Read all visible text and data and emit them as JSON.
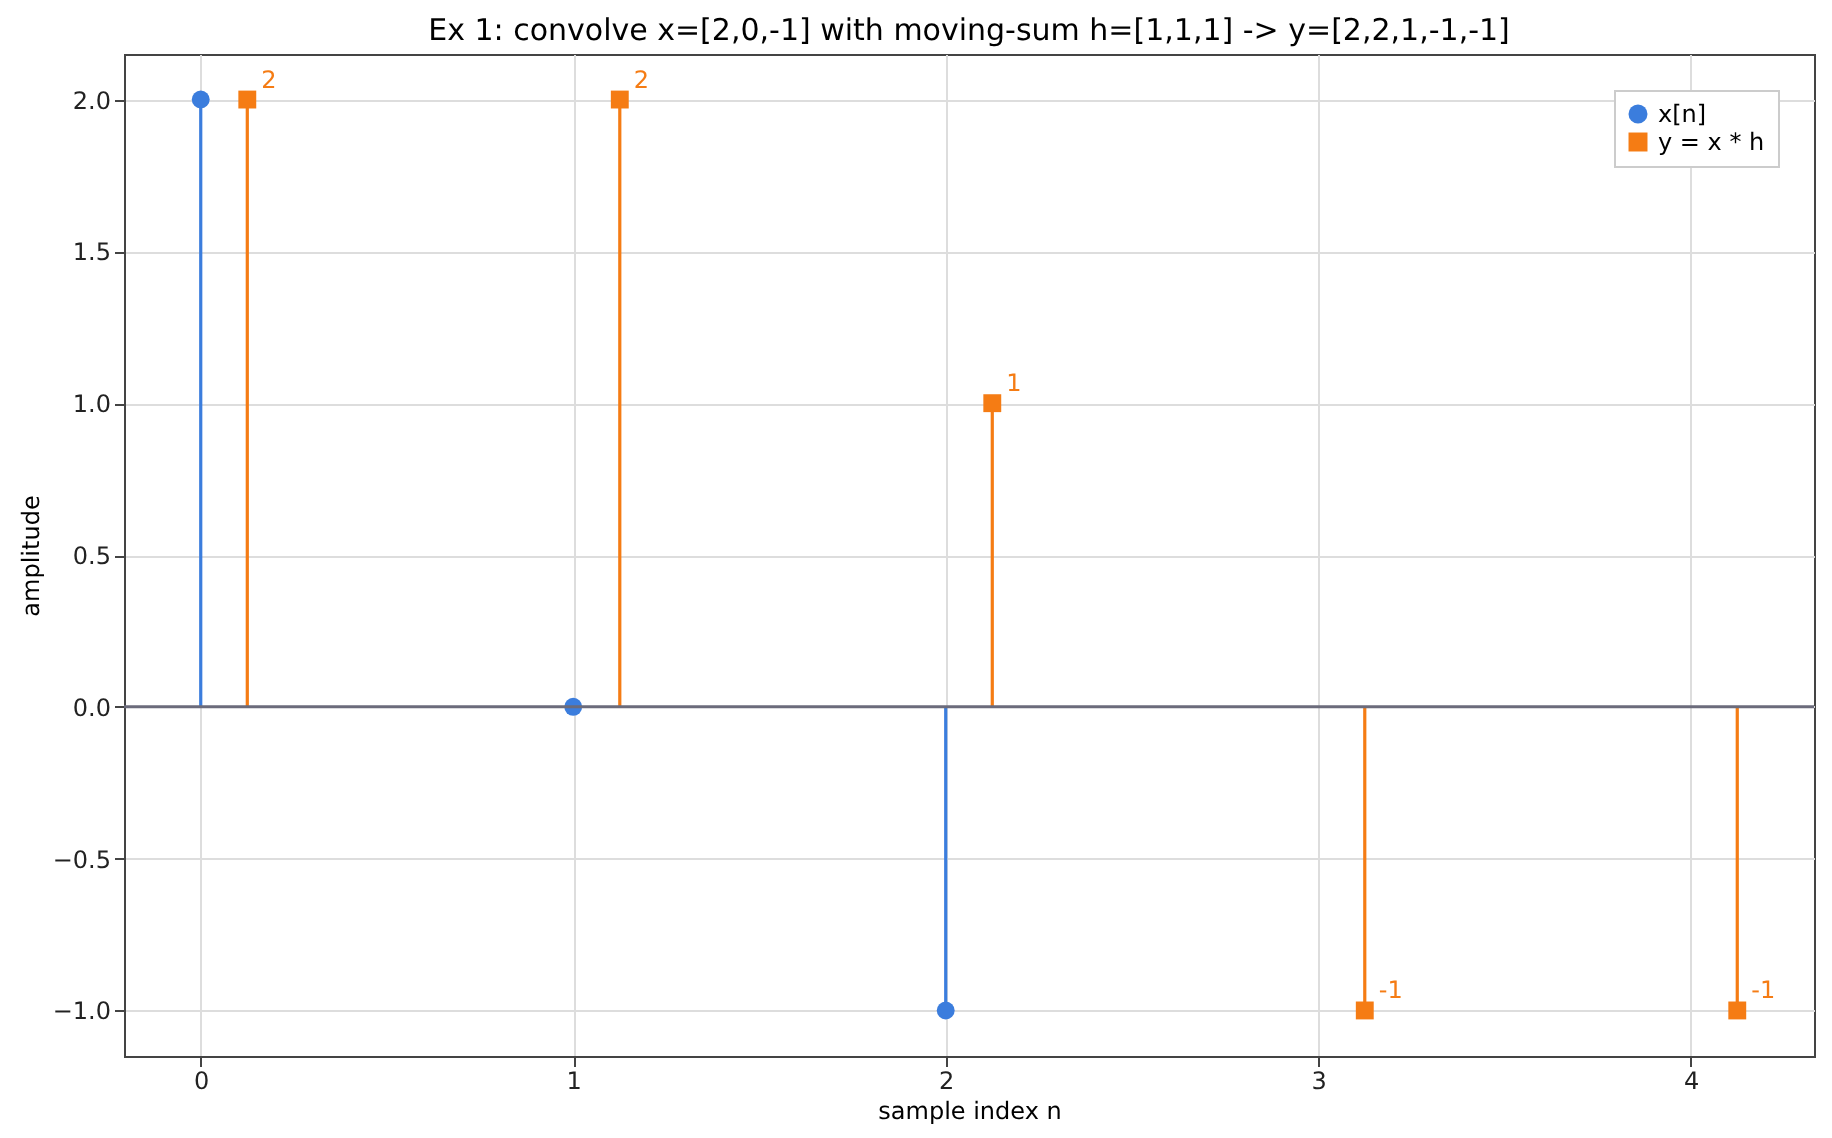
{
  "chart_data": {
    "type": "lollipop",
    "title": "Ex 1: convolve x=[2,0,-1] with moving-sum h=[1,1,1] -> y=[2,2,1,-1,-1]",
    "xlabel": "sample index n",
    "ylabel": "amplitude",
    "series": [
      {
        "name": "x[n]",
        "color": "#3b7ddd",
        "marker": "circle",
        "x": [
          0,
          1,
          2
        ],
        "values": [
          2,
          0,
          -1
        ]
      },
      {
        "name": "y = x * h",
        "color": "#f57c14",
        "marker": "square",
        "x": [
          0.125,
          1.125,
          2.125,
          3.125,
          4.125
        ],
        "values": [
          2,
          2,
          1,
          -1,
          -1
        ],
        "value_labels": [
          "2",
          "2",
          "1",
          "-1",
          "-1"
        ]
      }
    ],
    "xlim": [
      -0.206,
      4.331
    ],
    "xticks": [
      0,
      1,
      2,
      3,
      4
    ],
    "ylim": [
      -1.15,
      2.15
    ],
    "yticks": [
      {
        "value": -1,
        "label": "−1.0"
      },
      {
        "value": -0.5,
        "label": "−0.5"
      },
      {
        "value": 0,
        "label": "0.0"
      },
      0.5,
      {
        "value": 1,
        "label": "1.0"
      },
      1.5,
      {
        "value": 2,
        "label": "2.0"
      }
    ],
    "ref_lines": [
      {
        "axis": "y",
        "value": 0,
        "color": "#6b6b7b"
      }
    ],
    "grid": true,
    "legend": "top right"
  }
}
